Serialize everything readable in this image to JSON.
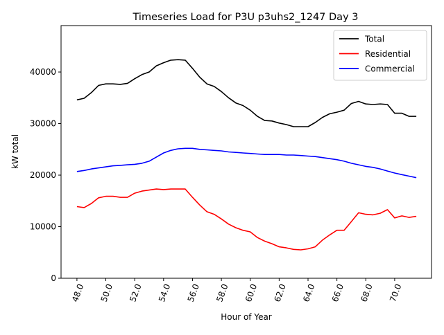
{
  "chart_data": {
    "type": "line",
    "title": "Timeseries Load for P3U p3uhs2_1247  Day 3",
    "xlabel": "Hour of Year",
    "ylabel": "kW total",
    "xlim": [
      46.9,
      72.55
    ],
    "ylim": [
      0,
      49000
    ],
    "x_ticks": [
      48,
      50,
      52,
      54,
      56,
      58,
      60,
      62,
      64,
      66,
      68,
      70
    ],
    "x_tick_labels": [
      "48.0",
      "50.0",
      "52.0",
      "54.0",
      "56.0",
      "58.0",
      "60.0",
      "62.0",
      "64.0",
      "66.0",
      "68.0",
      "70.0"
    ],
    "y_ticks": [
      0,
      10000,
      20000,
      30000,
      40000
    ],
    "y_tick_labels": [
      "0",
      "10000",
      "20000",
      "30000",
      "40000"
    ],
    "grid": false,
    "legend_position": "top-right",
    "x": [
      48.0,
      48.5,
      49.0,
      49.5,
      50.0,
      50.5,
      51.0,
      51.5,
      52.0,
      52.5,
      53.0,
      53.5,
      54.0,
      54.5,
      55.0,
      55.5,
      56.0,
      56.5,
      57.0,
      57.5,
      58.0,
      58.5,
      59.0,
      59.5,
      60.0,
      60.5,
      61.0,
      61.5,
      62.0,
      62.5,
      63.0,
      63.5,
      64.0,
      64.5,
      65.0,
      65.5,
      66.0,
      66.5,
      67.0,
      67.5,
      68.0,
      68.5,
      69.0,
      69.5,
      70.0,
      70.5,
      71.0,
      71.5
    ],
    "series": [
      {
        "name": "Total",
        "color": "#000000",
        "values": [
          34600,
          34900,
          36000,
          37400,
          37700,
          37700,
          37600,
          37800,
          38700,
          39500,
          40000,
          41200,
          41800,
          42300,
          42400,
          42300,
          40700,
          39000,
          37700,
          37200,
          36200,
          35000,
          34000,
          33500,
          32600,
          31400,
          30600,
          30500,
          30100,
          29800,
          29400,
          29400,
          29400,
          30200,
          31200,
          31900,
          32200,
          32600,
          33900,
          34300,
          33800,
          33700,
          33800,
          33700,
          32000,
          32000,
          31400,
          31400
        ]
      },
      {
        "name": "Residential",
        "color": "#ff0000",
        "values": [
          13900,
          13700,
          14500,
          15600,
          15900,
          15900,
          15700,
          15700,
          16500,
          16900,
          17100,
          17300,
          17200,
          17300,
          17300,
          17300,
          15700,
          14200,
          12900,
          12400,
          11500,
          10500,
          9800,
          9300,
          9000,
          7900,
          7200,
          6700,
          6100,
          5900,
          5600,
          5500,
          5700,
          6100,
          7400,
          8400,
          9300,
          9300,
          11000,
          12700,
          12400,
          12300,
          12600,
          13300,
          11700,
          12100,
          11800,
          12000
        ]
      },
      {
        "name": "Commercial",
        "color": "#0000ff",
        "values": [
          20700,
          20900,
          21200,
          21400,
          21600,
          21800,
          21900,
          22000,
          22100,
          22300,
          22700,
          23500,
          24300,
          24800,
          25100,
          25200,
          25200,
          25000,
          24900,
          24800,
          24700,
          24500,
          24400,
          24300,
          24200,
          24100,
          24000,
          24000,
          24000,
          23900,
          23900,
          23800,
          23700,
          23600,
          23400,
          23200,
          23000,
          22700,
          22300,
          22000,
          21700,
          21500,
          21200,
          20800,
          20400,
          20100,
          19800,
          19500
        ]
      }
    ]
  }
}
